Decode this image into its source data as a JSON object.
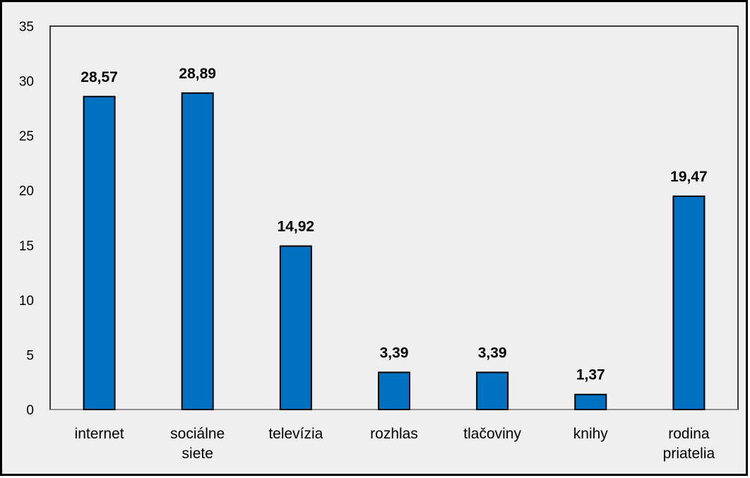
{
  "chart_data": {
    "type": "bar",
    "categories": [
      [
        "internet"
      ],
      [
        "sociálne",
        "siete"
      ],
      [
        "televízia"
      ],
      [
        "rozhlas"
      ],
      [
        "tlačoviny"
      ],
      [
        "knihy"
      ],
      [
        "rodina",
        "priatelia"
      ]
    ],
    "values": [
      28.57,
      28.89,
      14.92,
      3.39,
      3.39,
      1.37,
      19.47
    ],
    "data_labels": [
      "28,57",
      "28,89",
      "14,92",
      "3,39",
      "3,39",
      "1,37",
      "19,47"
    ],
    "yticks": [
      "0",
      "5",
      "10",
      "15",
      "20",
      "25",
      "30",
      "35"
    ],
    "ylim": [
      0,
      35
    ],
    "title": "",
    "xlabel": "",
    "ylabel": "",
    "grid": false,
    "legend": "none",
    "bar_color": "#0070c0",
    "background_color": "#efefef"
  }
}
